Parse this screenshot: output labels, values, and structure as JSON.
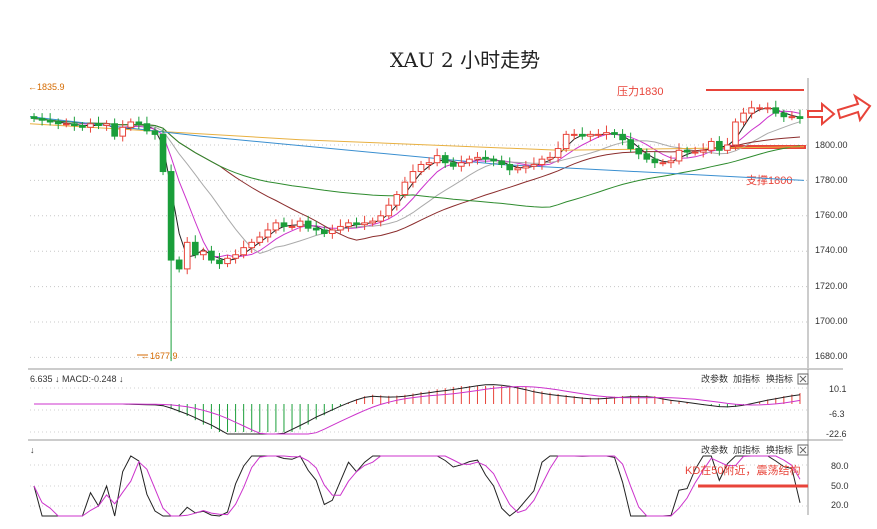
{
  "chart_data": {
    "type": "candlestick",
    "title": "XAU 2 小时走势",
    "main": {
      "ylim": [
        1680,
        1840
      ],
      "ticks": [
        "1800.00",
        "1780.00",
        "1760.00",
        "1740.00",
        "1720.00",
        "1700.00",
        "1680.00"
      ],
      "tick_values": [
        1800,
        1780,
        1760,
        1740,
        1720,
        1700,
        1680
      ],
      "hidden_top_tick": "1820.00",
      "high_label": "1835.9",
      "low_label": "1677.9",
      "low_value": 1677.9,
      "annotations": {
        "resistance_label": "压力1830",
        "resistance_value": 1830,
        "support_label": "支撑1800",
        "support_value": 1800
      }
    },
    "macd": {
      "header": "6.635 ↓ MACD:-0.248 ↓",
      "ticks": [
        "10.1",
        "-6.3",
        "-22.6"
      ],
      "tick_values": [
        10.1,
        -6.3,
        -22.6
      ],
      "menu": [
        "改参数",
        "加指标",
        "换指标"
      ]
    },
    "kdj": {
      "header_arrow": "↓",
      "ticks": [
        "80.0",
        "50.0",
        "20.0"
      ],
      "tick_values": [
        80,
        50,
        20
      ],
      "menu": [
        "改参数",
        "加指标",
        "换指标"
      ],
      "annotation": "KD在50附近，震荡结构",
      "annotation_value": 50
    },
    "candles_close": [
      1815,
      1814,
      1813,
      1812,
      1812,
      1811,
      1810,
      1812,
      1811,
      1812,
      1805,
      1810,
      1813,
      1812,
      1808,
      1806,
      1785,
      1735,
      1730,
      1745,
      1738,
      1740,
      1735,
      1733,
      1736,
      1738,
      1742,
      1745,
      1748,
      1752,
      1756,
      1754,
      1754,
      1757,
      1753,
      1752,
      1750,
      1752,
      1754,
      1756,
      1755,
      1756,
      1757,
      1760,
      1766,
      1772,
      1779,
      1785,
      1789,
      1790,
      1794,
      1790,
      1788,
      1790,
      1792,
      1793,
      1792,
      1791,
      1789,
      1786,
      1787,
      1788,
      1789,
      1792,
      1793,
      1798,
      1806,
      1806,
      1805,
      1806,
      1806,
      1807,
      1806,
      1803,
      1798,
      1795,
      1792,
      1790,
      1790,
      1791,
      1797,
      1796,
      1796,
      1797,
      1802,
      1797,
      1800,
      1813,
      1818,
      1821,
      1821,
      1821,
      1818,
      1816,
      1816,
      1815
    ]
  }
}
